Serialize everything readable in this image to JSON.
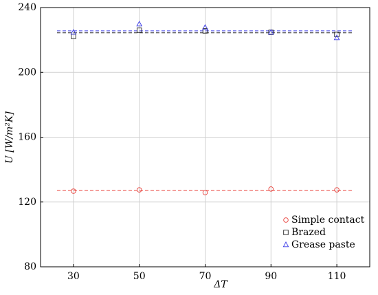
{
  "chart_data": {
    "type": "scatter",
    "x_label": "ΔT",
    "y_label": "U [W/m²K]",
    "xlim": [
      20,
      120
    ],
    "xticks": [
      30,
      50,
      70,
      90,
      110
    ],
    "ylim": [
      80,
      240
    ],
    "yticks": [
      80,
      120,
      160,
      200,
      240
    ],
    "grid": true,
    "legend": "lower right",
    "fit_range": [
      25,
      115
    ],
    "series": [
      {
        "name": "Simple contact",
        "color": "#e8403a",
        "marker": "circle",
        "x": [
          30,
          50,
          70,
          90,
          110
        ],
        "values": [
          126.7,
          127.5,
          125.8,
          128,
          127.5
        ],
        "fit": 127.1
      },
      {
        "name": "Brazed",
        "color": "#222222",
        "marker": "square",
        "x": [
          30,
          50,
          70,
          90,
          110
        ],
        "values": [
          222.2,
          226,
          225.6,
          224.7,
          223.4
        ],
        "fit": 224.4
      },
      {
        "name": "Grease paste",
        "color": "#3b3be8",
        "marker": "triangle",
        "x": [
          30,
          50,
          70,
          90,
          110
        ],
        "values": [
          224.7,
          229.8,
          227.7,
          224.7,
          221.3
        ],
        "fit": 225.6
      }
    ]
  }
}
